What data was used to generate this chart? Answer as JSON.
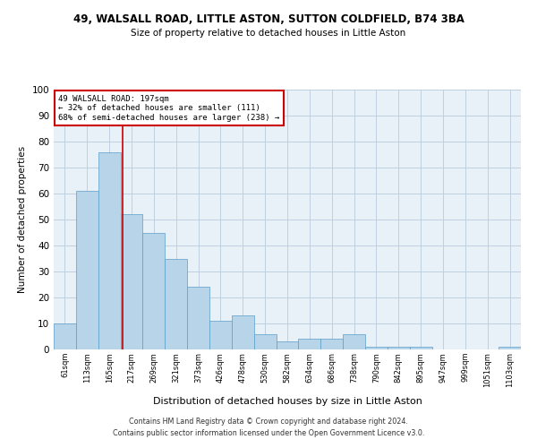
{
  "title": "49, WALSALL ROAD, LITTLE ASTON, SUTTON COLDFIELD, B74 3BA",
  "subtitle": "Size of property relative to detached houses in Little Aston",
  "xlabel": "Distribution of detached houses by size in Little Aston",
  "ylabel": "Number of detached properties",
  "footer_line1": "Contains HM Land Registry data © Crown copyright and database right 2024.",
  "footer_line2": "Contains public sector information licensed under the Open Government Licence v3.0.",
  "annotation_line1": "49 WALSALL ROAD: 197sqm",
  "annotation_line2": "← 32% of detached houses are smaller (111)",
  "annotation_line3": "68% of semi-detached houses are larger (238) →",
  "bar_labels": [
    "61sqm",
    "113sqm",
    "165sqm",
    "217sqm",
    "269sqm",
    "321sqm",
    "373sqm",
    "426sqm",
    "478sqm",
    "530sqm",
    "582sqm",
    "634sqm",
    "686sqm",
    "738sqm",
    "790sqm",
    "842sqm",
    "895sqm",
    "947sqm",
    "999sqm",
    "1051sqm",
    "1103sqm"
  ],
  "bar_values": [
    10,
    61,
    76,
    52,
    45,
    35,
    24,
    11,
    13,
    6,
    3,
    4,
    4,
    6,
    1,
    1,
    1,
    0,
    0,
    0,
    1
  ],
  "bar_color": "#b8d4e8",
  "bar_edge_color": "#5a9ec9",
  "vline_color": "#cc0000",
  "annotation_box_color": "#cc0000",
  "annotation_text_color": "#000000",
  "background_color": "#ffffff",
  "plot_bg_color": "#e8f0f8",
  "grid_color": "#c0d0e0",
  "ylim": [
    0,
    100
  ],
  "yticks": [
    0,
    10,
    20,
    30,
    40,
    50,
    60,
    70,
    80,
    90,
    100
  ]
}
